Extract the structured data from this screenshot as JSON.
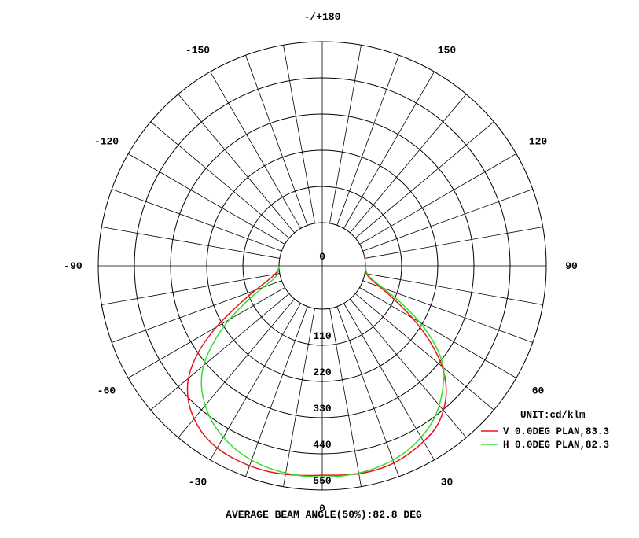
{
  "chart_data": {
    "type": "polar",
    "unit_label": "UNIT:cd/klm",
    "footer": "AVERAGE BEAM ANGLE(50%):82.8 DEG",
    "bottom_label": "0",
    "r_ticks": [
      0,
      110,
      220,
      330,
      440,
      550
    ],
    "r_tick_labels": [
      "0",
      "110",
      "220",
      "330",
      "440",
      "550"
    ],
    "rlim": [
      0,
      550
    ],
    "spoke_step_deg": 10,
    "angle_labels": [
      {
        "angle": 180,
        "text": "-/+180"
      },
      {
        "angle": -150,
        "text": "-150"
      },
      {
        "angle": 150,
        "text": "150"
      },
      {
        "angle": -120,
        "text": "-120"
      },
      {
        "angle": 120,
        "text": "120"
      },
      {
        "angle": -90,
        "text": "-90"
      },
      {
        "angle": 90,
        "text": "90"
      },
      {
        "angle": -60,
        "text": "-60"
      },
      {
        "angle": 60,
        "text": "60"
      },
      {
        "angle": -30,
        "text": "-30"
      },
      {
        "angle": 30,
        "text": "30"
      }
    ],
    "colors": {
      "grid": "#000000",
      "v_series": "#e8141c",
      "h_series": "#32e02a"
    },
    "series": [
      {
        "name": "V 0.0DEG PLAN,83.3",
        "color": "#e8141c",
        "angles": [
          0,
          5,
          10,
          15,
          20,
          25,
          30,
          35,
          40,
          45,
          50,
          55,
          60,
          65,
          70,
          75,
          80,
          85,
          90
        ],
        "values_pos": [
          505,
          507,
          510,
          510,
          506,
          497,
          485,
          470,
          442,
          402,
          345,
          268,
          185,
          110,
          55,
          20,
          5,
          1,
          0
        ],
        "values_neg": [
          505,
          508,
          512,
          515,
          515,
          513,
          508,
          496,
          475,
          445,
          400,
          330,
          240,
          150,
          85,
          40,
          15,
          3,
          0
        ]
      },
      {
        "name": "H 0.0DEG PLAN,82.3",
        "color": "#32e02a",
        "angles": [
          0,
          5,
          10,
          15,
          20,
          25,
          30,
          35,
          40,
          45,
          50,
          55,
          60,
          65,
          70,
          75,
          80,
          85,
          90
        ],
        "values_pos": [
          510,
          510,
          508,
          504,
          497,
          486,
          470,
          450,
          422,
          388,
          350,
          288,
          210,
          130,
          65,
          25,
          8,
          2,
          0
        ],
        "values_neg": [
          510,
          510,
          508,
          504,
          497,
          486,
          470,
          450,
          422,
          388,
          340,
          270,
          195,
          120,
          60,
          22,
          7,
          2,
          0
        ]
      }
    ]
  }
}
